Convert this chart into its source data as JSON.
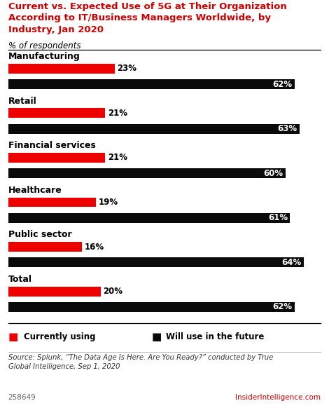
{
  "title": "Current vs. Expected Use of 5G at Their Organization\nAccording to IT/Business Managers Worldwide, by\nIndustry, Jan 2020",
  "subtitle": "% of respondents",
  "categories": [
    "Manufacturing",
    "Retail",
    "Financial services",
    "Healthcare",
    "Public sector",
    "Total"
  ],
  "current_values": [
    23,
    21,
    21,
    19,
    16,
    20
  ],
  "future_values": [
    62,
    63,
    60,
    61,
    64,
    62
  ],
  "current_color": "#ee0000",
  "future_color": "#0a0a0a",
  "source": "Source: Splunk, “The Data Age Is Here. Are You Ready?” conducted by True\nGlobal Intelligence, Sep 1, 2020",
  "footer_id": "258649",
  "footer_brand": "InsiderIntelligence.com",
  "bg_color": "#ffffff",
  "title_color": "#cc0000",
  "xlim_max": 68
}
